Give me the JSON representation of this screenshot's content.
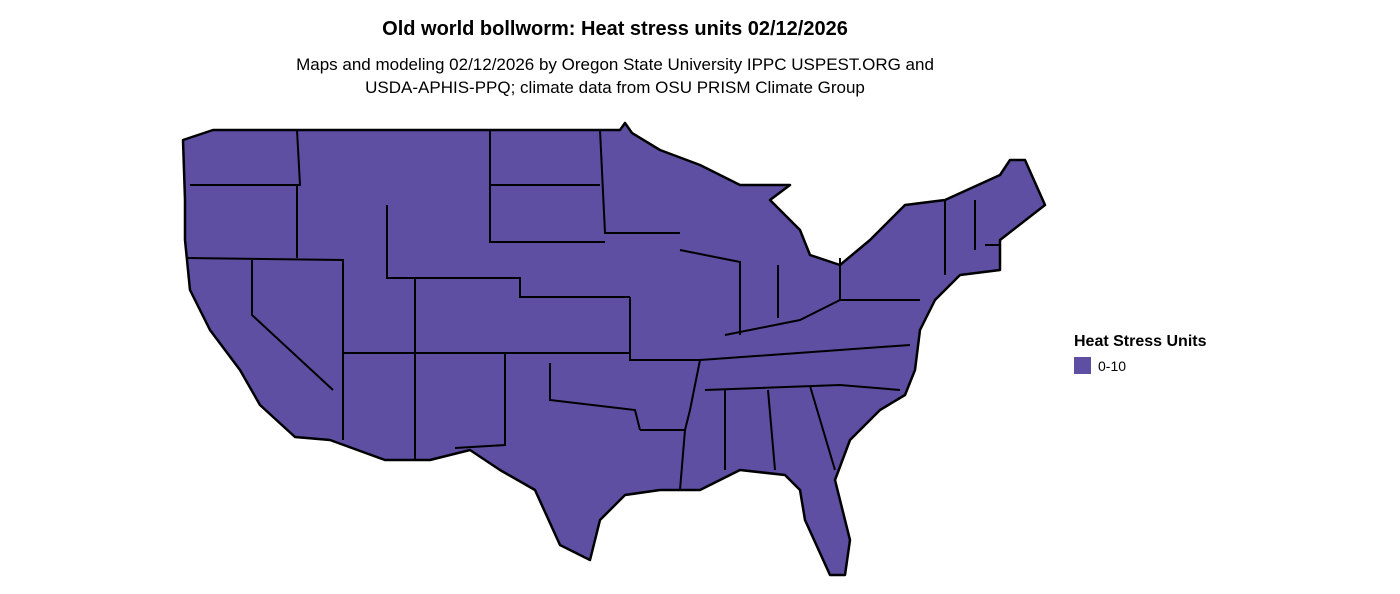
{
  "title": "Old world bollworm: Heat stress units 02/12/2026",
  "subtitle_line1": "Maps and modeling 02/12/2026 by Oregon State University IPPC USPEST.ORG and",
  "subtitle_line2": "USDA-APHIS-PPQ; climate data from OSU PRISM Climate Group",
  "map": {
    "region": "Contiguous United States",
    "fill_color": "#5e4fa2",
    "border_color": "#000000"
  },
  "legend": {
    "title": "Heat Stress Units",
    "items": [
      {
        "label": "0-10",
        "color": "#5e4fa2"
      }
    ]
  }
}
